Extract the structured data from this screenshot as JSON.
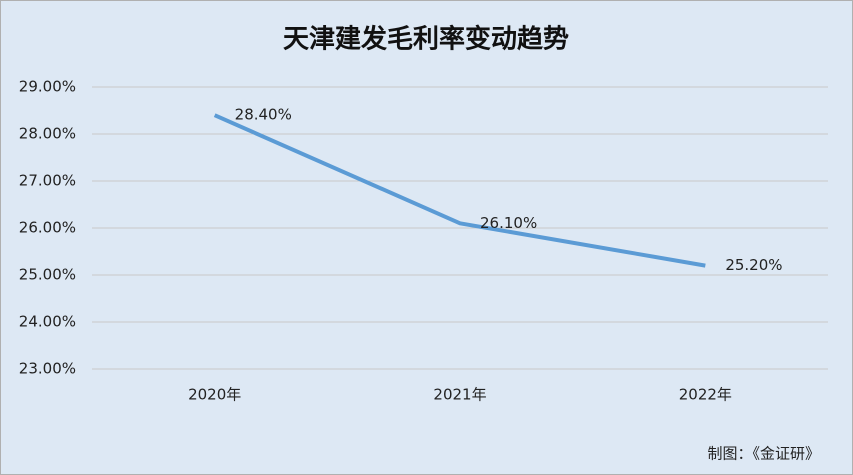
{
  "chart_data": {
    "type": "line",
    "title": "天津建发毛利率变动趋势",
    "categories": [
      "2020年",
      "2021年",
      "2022年"
    ],
    "values": [
      28.4,
      26.1,
      25.2
    ],
    "value_labels": [
      "28.40%",
      "26.10%",
      "25.20%"
    ],
    "color": "#5b9bd5",
    "ylim": [
      23,
      29
    ],
    "yticks": [
      {
        "value": 23,
        "label": "23.00%"
      },
      {
        "value": 24,
        "label": "24.00%"
      },
      {
        "value": 25,
        "label": "25.00%"
      },
      {
        "value": 26,
        "label": "26.00%"
      },
      {
        "value": 27,
        "label": "27.00%"
      },
      {
        "value": 28,
        "label": "28.00%"
      },
      {
        "value": 29,
        "label": "29.00%"
      }
    ],
    "grid": true,
    "note": "制图：《金证研》"
  }
}
